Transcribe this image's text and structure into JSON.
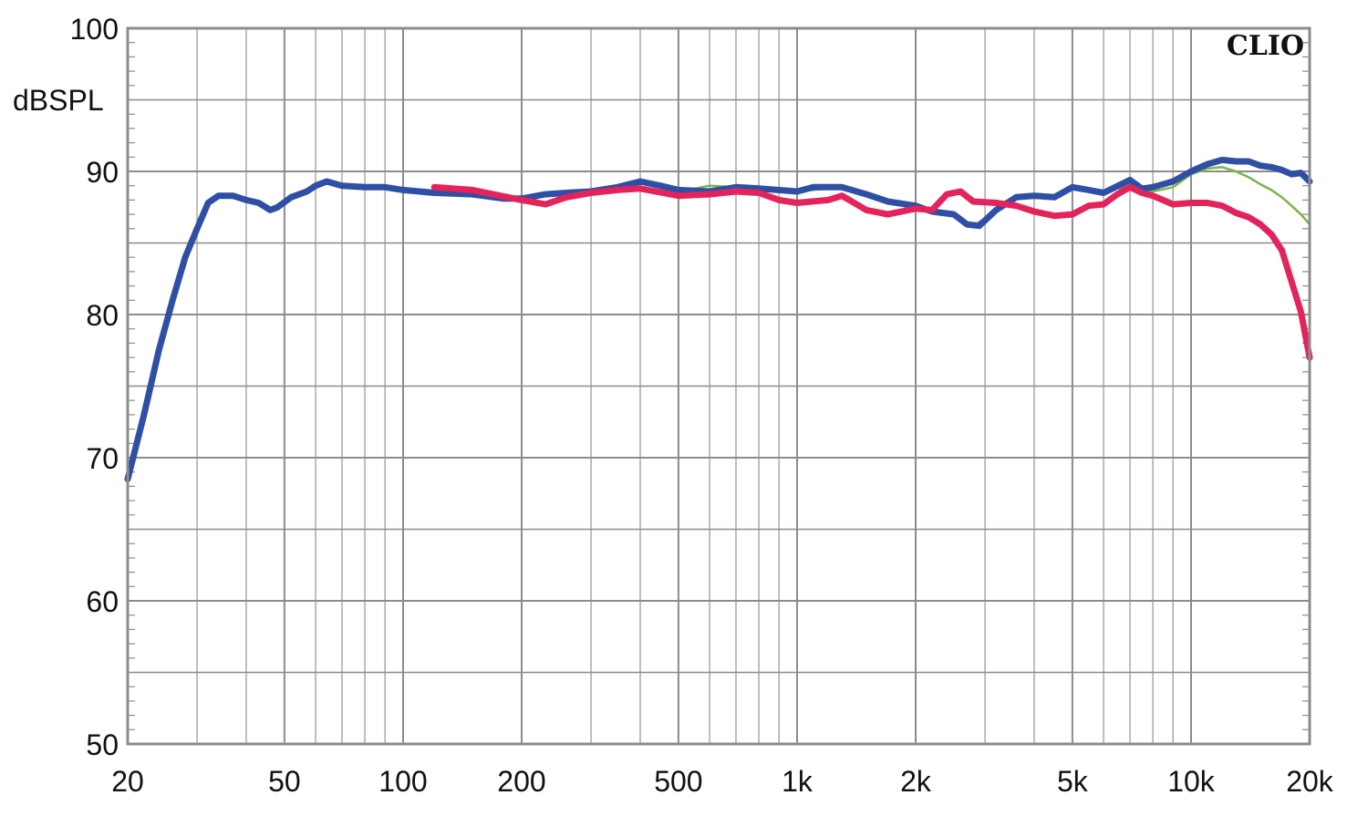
{
  "chart_data": {
    "type": "line",
    "title": "",
    "ylabel": "dBSPL",
    "xlabel": "",
    "brand": "CLIO",
    "x_scale": "log",
    "xlim": [
      20,
      20000
    ],
    "ylim": [
      50,
      100
    ],
    "x_ticks": [
      {
        "value": 20,
        "label": "20"
      },
      {
        "value": 50,
        "label": "50"
      },
      {
        "value": 100,
        "label": "100"
      },
      {
        "value": 200,
        "label": "200"
      },
      {
        "value": 500,
        "label": "500"
      },
      {
        "value": 1000,
        "label": "1k"
      },
      {
        "value": 2000,
        "label": "2k"
      },
      {
        "value": 5000,
        "label": "5k"
      },
      {
        "value": 10000,
        "label": "10k"
      },
      {
        "value": 20000,
        "label": "20k"
      }
    ],
    "y_ticks": [
      {
        "value": 50,
        "label": "50"
      },
      {
        "value": 60,
        "label": "60"
      },
      {
        "value": 70,
        "label": "70"
      },
      {
        "value": 80,
        "label": "80"
      },
      {
        "value": 90,
        "label": "90"
      },
      {
        "value": 100,
        "label": "100"
      }
    ],
    "grid": true,
    "series": [
      {
        "color": "#7ab648",
        "width": "thin",
        "points": [
          [
            550,
            88.8
          ],
          [
            600,
            89.0
          ],
          [
            700,
            88.9
          ],
          [
            800,
            88.8
          ],
          [
            1000,
            88.6
          ],
          [
            1300,
            88.9
          ],
          [
            1600,
            88.0
          ],
          [
            2000,
            87.5
          ],
          [
            2400,
            87.2
          ],
          [
            2800,
            86.2
          ],
          [
            3200,
            87.2
          ],
          [
            3600,
            88.2
          ],
          [
            4000,
            88.4
          ],
          [
            4500,
            88.2
          ],
          [
            5000,
            88.8
          ],
          [
            6000,
            88.6
          ],
          [
            7000,
            89.0
          ],
          [
            8000,
            88.6
          ],
          [
            9000,
            88.9
          ],
          [
            10000,
            89.8
          ],
          [
            11000,
            90.2
          ],
          [
            12000,
            90.3
          ],
          [
            13000,
            90.0
          ],
          [
            14000,
            89.6
          ],
          [
            15000,
            89.1
          ],
          [
            16000,
            88.7
          ],
          [
            17000,
            88.2
          ],
          [
            18000,
            87.6
          ],
          [
            19000,
            87.0
          ],
          [
            20000,
            86.3
          ]
        ]
      },
      {
        "color": "#2e4fa3",
        "width": "thick",
        "points": [
          [
            20,
            68.5
          ],
          [
            22,
            73.0
          ],
          [
            24,
            77.5
          ],
          [
            26,
            81.0
          ],
          [
            28,
            84.0
          ],
          [
            30,
            86.0
          ],
          [
            32,
            87.8
          ],
          [
            34,
            88.3
          ],
          [
            37,
            88.3
          ],
          [
            40,
            88.0
          ],
          [
            43,
            87.8
          ],
          [
            46,
            87.3
          ],
          [
            48,
            87.5
          ],
          [
            52,
            88.2
          ],
          [
            57,
            88.6
          ],
          [
            60,
            89.0
          ],
          [
            64,
            89.3
          ],
          [
            70,
            89.0
          ],
          [
            80,
            88.9
          ],
          [
            90,
            88.9
          ],
          [
            100,
            88.7
          ],
          [
            110,
            88.6
          ],
          [
            120,
            88.5
          ],
          [
            150,
            88.4
          ],
          [
            180,
            88.1
          ],
          [
            200,
            88.1
          ],
          [
            230,
            88.4
          ],
          [
            260,
            88.5
          ],
          [
            300,
            88.6
          ],
          [
            350,
            88.9
          ],
          [
            400,
            89.3
          ],
          [
            450,
            89.0
          ],
          [
            500,
            88.7
          ],
          [
            600,
            88.6
          ],
          [
            700,
            88.9
          ],
          [
            800,
            88.8
          ],
          [
            1000,
            88.6
          ],
          [
            1100,
            88.9
          ],
          [
            1300,
            88.9
          ],
          [
            1500,
            88.4
          ],
          [
            1700,
            87.9
          ],
          [
            2000,
            87.6
          ],
          [
            2200,
            87.2
          ],
          [
            2500,
            87.0
          ],
          [
            2700,
            86.3
          ],
          [
            2900,
            86.2
          ],
          [
            3200,
            87.3
          ],
          [
            3600,
            88.2
          ],
          [
            4000,
            88.3
          ],
          [
            4500,
            88.2
          ],
          [
            5000,
            88.9
          ],
          [
            5500,
            88.7
          ],
          [
            6000,
            88.5
          ],
          [
            7000,
            89.4
          ],
          [
            7500,
            88.8
          ],
          [
            8000,
            88.9
          ],
          [
            9000,
            89.3
          ],
          [
            10000,
            90.0
          ],
          [
            11000,
            90.5
          ],
          [
            12000,
            90.8
          ],
          [
            13000,
            90.7
          ],
          [
            14000,
            90.7
          ],
          [
            15000,
            90.4
          ],
          [
            16000,
            90.3
          ],
          [
            17000,
            90.1
          ],
          [
            18000,
            89.8
          ],
          [
            19000,
            89.9
          ],
          [
            20000,
            89.3
          ]
        ]
      },
      {
        "color": "#e3245b",
        "width": "thick",
        "points": [
          [
            120,
            88.9
          ],
          [
            150,
            88.7
          ],
          [
            200,
            88.0
          ],
          [
            230,
            87.7
          ],
          [
            260,
            88.2
          ],
          [
            300,
            88.5
          ],
          [
            350,
            88.7
          ],
          [
            400,
            88.8
          ],
          [
            500,
            88.3
          ],
          [
            600,
            88.4
          ],
          [
            700,
            88.6
          ],
          [
            800,
            88.5
          ],
          [
            900,
            88.0
          ],
          [
            1000,
            87.8
          ],
          [
            1200,
            88.0
          ],
          [
            1300,
            88.3
          ],
          [
            1500,
            87.3
          ],
          [
            1700,
            87.0
          ],
          [
            2000,
            87.4
          ],
          [
            2200,
            87.3
          ],
          [
            2400,
            88.4
          ],
          [
            2600,
            88.6
          ],
          [
            2800,
            87.9
          ],
          [
            3200,
            87.8
          ],
          [
            3600,
            87.6
          ],
          [
            4000,
            87.2
          ],
          [
            4500,
            86.9
          ],
          [
            5000,
            87.0
          ],
          [
            5500,
            87.6
          ],
          [
            6000,
            87.7
          ],
          [
            6500,
            88.4
          ],
          [
            7000,
            88.9
          ],
          [
            7500,
            88.5
          ],
          [
            8000,
            88.3
          ],
          [
            9000,
            87.7
          ],
          [
            10000,
            87.8
          ],
          [
            11000,
            87.8
          ],
          [
            12000,
            87.6
          ],
          [
            13000,
            87.1
          ],
          [
            14000,
            86.8
          ],
          [
            15000,
            86.3
          ],
          [
            16000,
            85.6
          ],
          [
            17000,
            84.5
          ],
          [
            18000,
            82.3
          ],
          [
            19000,
            80.2
          ],
          [
            20000,
            77.0
          ]
        ]
      }
    ]
  }
}
